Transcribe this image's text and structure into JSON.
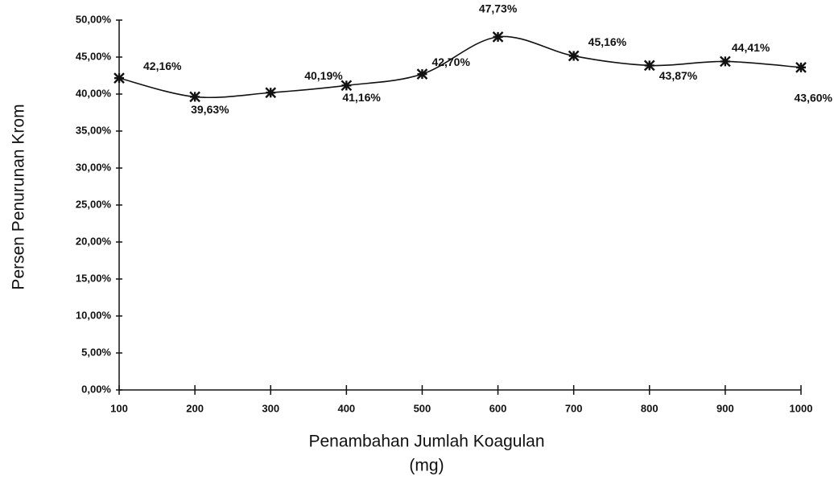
{
  "chart_data": {
    "type": "line",
    "x_label": [
      "Penambahan Jumlah Koagulan",
      "(mg)"
    ],
    "y_label": "Persen Penurunan Krom",
    "x": [
      100,
      200,
      300,
      400,
      500,
      600,
      700,
      800,
      900,
      1000
    ],
    "series": [
      {
        "name": "Persen Penurunan Krom",
        "color": "#111111",
        "values": [
          42.16,
          39.63,
          40.19,
          41.16,
          42.7,
          47.73,
          45.16,
          43.87,
          44.41,
          43.6
        ],
        "value_labels": [
          "42,16%",
          "39,63%",
          "40,19%",
          "41,16%",
          "42,70%",
          "47,73%",
          "45,16%",
          "43,87%",
          "44,41%",
          "43,60%"
        ]
      }
    ],
    "xlim": [
      100,
      1000
    ],
    "xticks": [
      100,
      200,
      300,
      400,
      500,
      600,
      700,
      800,
      900,
      1000
    ],
    "ylim": [
      0,
      50
    ],
    "yticks": [
      {
        "value": 0,
        "label": "0,00%"
      },
      {
        "value": 5,
        "label": "5,00%"
      },
      {
        "value": 10,
        "label": "10,00%"
      },
      {
        "value": 15,
        "label": "15,00%"
      },
      {
        "value": 20,
        "label": "20,00%"
      },
      {
        "value": 25,
        "label": "25,00%"
      },
      {
        "value": 30,
        "label": "30,00%"
      },
      {
        "value": 35,
        "label": "35,00%"
      },
      {
        "value": 40,
        "label": "40,00%"
      },
      {
        "value": 45,
        "label": "45,00%"
      },
      {
        "value": 50,
        "label": "50,00%"
      }
    ],
    "grid": false
  }
}
